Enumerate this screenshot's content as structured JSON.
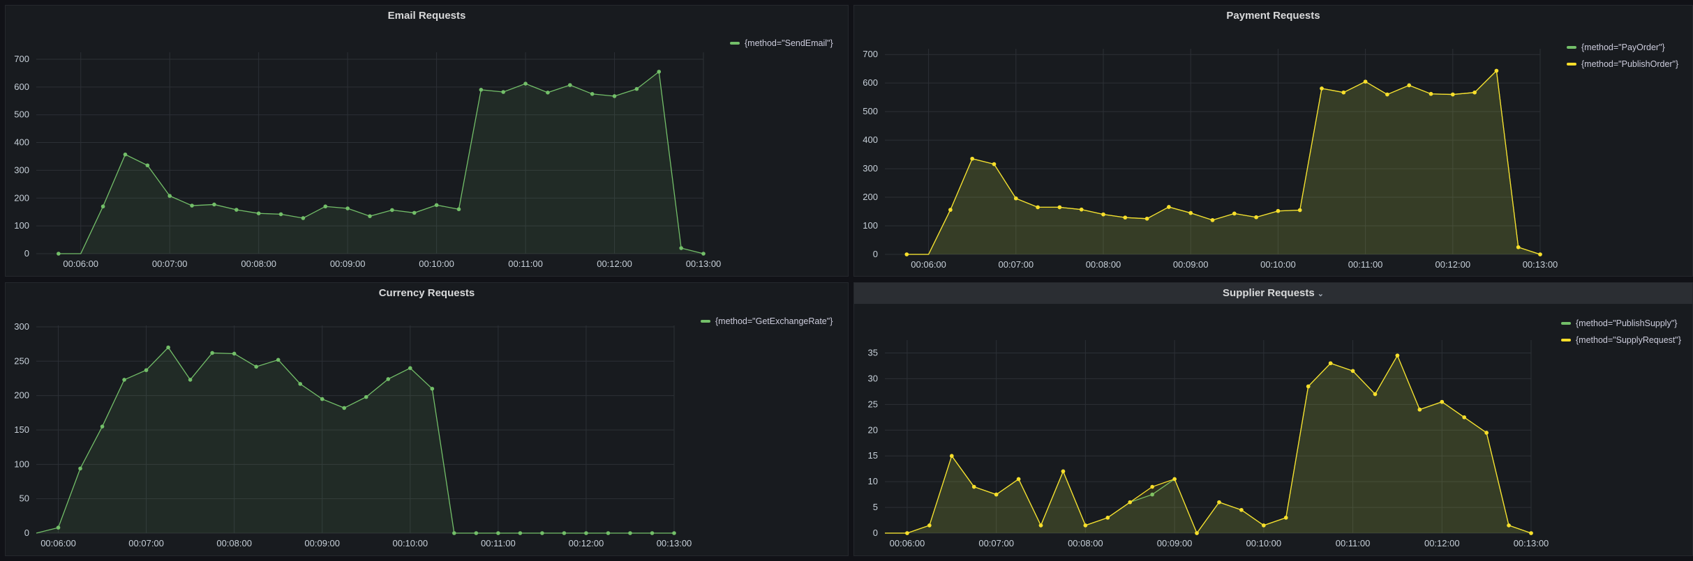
{
  "panels": [
    {
      "id": "email",
      "title": "Email Requests",
      "chart_data": {
        "type": "area",
        "title": "Email Requests",
        "ylim": [
          0,
          725
        ],
        "yticks": [
          0,
          100,
          200,
          300,
          400,
          500,
          600,
          700
        ],
        "xlim": [
          "00:05:30",
          "00:13:00"
        ],
        "xticks": [
          "00:06:00",
          "00:07:00",
          "00:08:00",
          "00:09:00",
          "00:10:00",
          "00:11:00",
          "00:12:00",
          "00:13:00"
        ],
        "grid": true,
        "legend": "top-right",
        "series": [
          {
            "name": "{method=\"SendEmail\"}",
            "color": "#73bf69",
            "x": [
              "00:05:30",
              "00:05:45",
              "00:06:00",
              "00:06:15",
              "00:06:30",
              "00:06:45",
              "00:07:00",
              "00:07:15",
              "00:07:30",
              "00:07:45",
              "00:08:00",
              "00:08:15",
              "00:08:30",
              "00:08:45",
              "00:09:00",
              "00:09:15",
              "00:09:30",
              "00:09:45",
              "00:10:00",
              "00:10:15",
              "00:10:30",
              "00:10:45",
              "00:11:00",
              "00:11:15",
              "00:11:30",
              "00:11:45",
              "00:12:00",
              "00:12:15",
              "00:12:30",
              "00:12:45",
              "00:13:00"
            ],
            "values": [
              null,
              0,
              0,
              170,
              357,
              318,
              208,
              173,
              177,
              158,
              145,
              142,
              128,
              170,
              163,
              135,
              157,
              147,
              175,
              160,
              590,
              582,
              612,
              580,
              607,
              575,
              567,
              593,
              655,
              20,
              0
            ],
            "marked": [
              false,
              true,
              false,
              true,
              true,
              true,
              true,
              true,
              true,
              true,
              true,
              true,
              true,
              true,
              true,
              true,
              true,
              true,
              true,
              true,
              true,
              true,
              true,
              true,
              true,
              true,
              true,
              true,
              true,
              true,
              true
            ]
          }
        ]
      }
    },
    {
      "id": "payment",
      "title": "Payment Requests",
      "chart_data": {
        "type": "area",
        "title": "Payment Requests",
        "ylim": [
          0,
          720
        ],
        "yticks": [
          0,
          100,
          200,
          300,
          400,
          500,
          600,
          700
        ],
        "xlim": [
          "00:05:30",
          "00:13:00"
        ],
        "xticks": [
          "00:06:00",
          "00:07:00",
          "00:08:00",
          "00:09:00",
          "00:10:00",
          "00:11:00",
          "00:12:00",
          "00:13:00"
        ],
        "grid": true,
        "legend": "top-right",
        "series": [
          {
            "name": "{method=\"PayOrder\"}",
            "color": "#73bf69",
            "x": [
              "00:05:30",
              "00:05:45",
              "00:06:00",
              "00:06:15",
              "00:06:30",
              "00:06:45",
              "00:07:00",
              "00:07:15",
              "00:07:30",
              "00:07:45",
              "00:08:00",
              "00:08:15",
              "00:08:30",
              "00:08:45",
              "00:09:00",
              "00:09:15",
              "00:09:30",
              "00:09:45",
              "00:10:00",
              "00:10:15",
              "00:10:30",
              "00:10:45",
              "00:11:00",
              "00:11:15",
              "00:11:30",
              "00:11:45",
              "00:12:00",
              "00:12:15",
              "00:12:30",
              "00:12:45",
              "00:13:00"
            ],
            "values": [
              null,
              0,
              0,
              156,
              335,
              316,
              196,
              165,
              165,
              157,
              140,
              129,
              125,
              166,
              145,
              120,
              143,
              130,
              152,
              155,
              581,
              567,
              605,
              560,
              592,
              562,
              560,
              567,
              643,
              25,
              0
            ],
            "marked": [
              false,
              true,
              false,
              true,
              true,
              true,
              true,
              true,
              true,
              true,
              true,
              true,
              true,
              true,
              true,
              true,
              true,
              true,
              true,
              true,
              true,
              true,
              true,
              true,
              true,
              true,
              true,
              true,
              true,
              true,
              true
            ]
          },
          {
            "name": "{method=\"PublishOrder\"}",
            "color": "#fade2a",
            "x": [
              "00:05:30",
              "00:05:45",
              "00:06:00",
              "00:06:15",
              "00:06:30",
              "00:06:45",
              "00:07:00",
              "00:07:15",
              "00:07:30",
              "00:07:45",
              "00:08:00",
              "00:08:15",
              "00:08:30",
              "00:08:45",
              "00:09:00",
              "00:09:15",
              "00:09:30",
              "00:09:45",
              "00:10:00",
              "00:10:15",
              "00:10:30",
              "00:10:45",
              "00:11:00",
              "00:11:15",
              "00:11:30",
              "00:11:45",
              "00:12:00",
              "00:12:15",
              "00:12:30",
              "00:12:45",
              "00:13:00"
            ],
            "values": [
              null,
              0,
              0,
              156,
              335,
              316,
              196,
              165,
              165,
              157,
              140,
              129,
              125,
              166,
              145,
              120,
              143,
              130,
              152,
              155,
              581,
              567,
              605,
              560,
              592,
              562,
              560,
              567,
              643,
              25,
              0
            ],
            "marked": [
              false,
              true,
              false,
              true,
              true,
              true,
              true,
              true,
              true,
              true,
              true,
              true,
              true,
              true,
              true,
              true,
              true,
              true,
              true,
              true,
              true,
              true,
              true,
              true,
              true,
              true,
              true,
              true,
              true,
              true,
              true
            ]
          }
        ]
      }
    },
    {
      "id": "currency",
      "title": "Currency Requests",
      "chart_data": {
        "type": "area",
        "title": "Currency Requests",
        "ylim": [
          0,
          302
        ],
        "yticks": [
          0,
          50,
          100,
          150,
          200,
          250,
          300
        ],
        "xlim": [
          "00:05:45",
          "00:13:00"
        ],
        "xticks": [
          "00:06:00",
          "00:07:00",
          "00:08:00",
          "00:09:00",
          "00:10:00",
          "00:11:00",
          "00:12:00",
          "00:13:00"
        ],
        "grid": true,
        "legend": "top-right",
        "series": [
          {
            "name": "{method=\"GetExchangeRate\"}",
            "color": "#73bf69",
            "x": [
              "00:05:45",
              "00:06:00",
              "00:06:15",
              "00:06:30",
              "00:06:45",
              "00:07:00",
              "00:07:15",
              "00:07:30",
              "00:07:45",
              "00:08:00",
              "00:08:15",
              "00:08:30",
              "00:08:45",
              "00:09:00",
              "00:09:15",
              "00:09:30",
              "00:09:45",
              "00:10:00",
              "00:10:15",
              "00:10:30",
              "00:10:45",
              "00:11:00",
              "00:11:15",
              "00:11:30",
              "00:11:45",
              "00:12:00",
              "00:12:15",
              "00:12:30",
              "00:12:45",
              "00:13:00"
            ],
            "values": [
              0,
              8,
              94,
              155,
              223,
              237,
              270,
              223,
              262,
              261,
              242,
              252,
              217,
              195,
              182,
              198,
              224,
              240,
              210,
              0,
              0,
              0,
              0,
              0,
              0,
              0,
              0,
              0,
              0,
              0
            ],
            "marked": [
              false,
              true,
              true,
              true,
              true,
              true,
              true,
              true,
              true,
              true,
              true,
              true,
              true,
              true,
              true,
              true,
              true,
              true,
              true,
              true,
              true,
              true,
              true,
              true,
              true,
              true,
              true,
              true,
              true,
              true
            ]
          }
        ]
      }
    },
    {
      "id": "supplier",
      "title": "Supplier Requests",
      "title_menu_icon": "chevron-down-icon",
      "chart_data": {
        "type": "area",
        "title": "Supplier Requests",
        "ylim": [
          0,
          37.5
        ],
        "yticks": [
          0,
          5,
          10,
          15,
          20,
          25,
          30,
          35
        ],
        "xlim": [
          "00:05:45",
          "00:13:00"
        ],
        "xticks": [
          "00:06:00",
          "00:07:00",
          "00:08:00",
          "00:09:00",
          "00:10:00",
          "00:11:00",
          "00:12:00",
          "00:13:00"
        ],
        "grid": true,
        "legend": "top-right",
        "series": [
          {
            "name": "{method=\"PublishSupply\"}",
            "color": "#73bf69",
            "x": [
              "00:05:45",
              "00:06:00",
              "00:06:15",
              "00:06:30",
              "00:06:45",
              "00:07:00",
              "00:07:15",
              "00:07:30",
              "00:07:45",
              "00:08:00",
              "00:08:15",
              "00:08:30",
              "00:08:45",
              "00:09:00",
              "00:09:15",
              "00:09:30",
              "00:09:45",
              "00:10:00",
              "00:10:15",
              "00:10:30",
              "00:10:45",
              "00:11:00",
              "00:11:15",
              "00:11:30",
              "00:11:45",
              "00:12:00",
              "00:12:15",
              "00:12:30",
              "00:12:45",
              "00:13:00"
            ],
            "values": [
              0,
              0,
              1.5,
              15,
              9,
              7.5,
              10.5,
              1.5,
              12,
              1.5,
              3,
              6,
              7.5,
              10.5,
              0,
              6,
              4.5,
              1.5,
              3,
              28.5,
              33,
              31.5,
              27,
              34.5,
              24,
              25.5,
              22.5,
              19.5,
              1.5,
              0
            ],
            "marked": [
              false,
              true,
              true,
              true,
              true,
              true,
              true,
              true,
              true,
              true,
              true,
              true,
              true,
              true,
              true,
              true,
              true,
              true,
              true,
              true,
              true,
              true,
              true,
              true,
              true,
              true,
              true,
              true,
              true,
              true
            ]
          },
          {
            "name": "{method=\"SupplyRequest\"}",
            "color": "#fade2a",
            "x": [
              "00:05:45",
              "00:06:00",
              "00:06:15",
              "00:06:30",
              "00:06:45",
              "00:07:00",
              "00:07:15",
              "00:07:30",
              "00:07:45",
              "00:08:00",
              "00:08:15",
              "00:08:30",
              "00:08:45",
              "00:09:00",
              "00:09:15",
              "00:09:30",
              "00:09:45",
              "00:10:00",
              "00:10:15",
              "00:10:30",
              "00:10:45",
              "00:11:00",
              "00:11:15",
              "00:11:30",
              "00:11:45",
              "00:12:00",
              "00:12:15",
              "00:12:30",
              "00:12:45",
              "00:13:00"
            ],
            "values": [
              0,
              0,
              1.5,
              15,
              9,
              7.5,
              10.5,
              1.5,
              12,
              1.5,
              3,
              6,
              9,
              10.5,
              0,
              6,
              4.5,
              1.5,
              3,
              28.5,
              33,
              31.5,
              27,
              34.5,
              24,
              25.5,
              22.5,
              19.5,
              1.5,
              0
            ],
            "marked": [
              false,
              true,
              true,
              true,
              true,
              true,
              true,
              true,
              true,
              true,
              true,
              true,
              true,
              true,
              true,
              true,
              true,
              true,
              true,
              true,
              true,
              true,
              true,
              true,
              true,
              true,
              true,
              true,
              true,
              true
            ]
          }
        ]
      }
    }
  ]
}
